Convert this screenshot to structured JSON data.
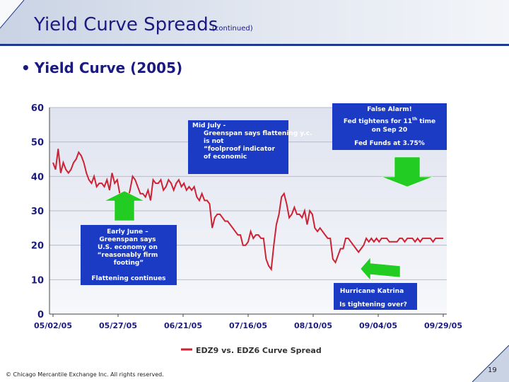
{
  "header": {
    "title": "Yield Curve Spreads",
    "subtitle": "(continued)"
  },
  "bullet": "Yield Curve (2005)",
  "chart_data": {
    "type": "line",
    "title": "Yield Curve (2005)",
    "ylim": [
      0,
      60
    ],
    "y_ticks": [
      "0",
      "10",
      "20",
      "30",
      "40",
      "50",
      "60"
    ],
    "x_ticks": [
      "05/02/05",
      "05/27/05",
      "06/21/05",
      "07/16/05",
      "08/10/05",
      "09/04/05",
      "09/29/05"
    ],
    "grid": true,
    "legend": "EDZ9 vs. EDZ6 Curve Spread",
    "series": [
      {
        "name": "EDZ9 vs. EDZ6 Curve Spread",
        "color": "#cc2233",
        "x_days": [
          0,
          1,
          2,
          3,
          4,
          5,
          6,
          7,
          8,
          9,
          10,
          11,
          12,
          13,
          14,
          15,
          16,
          17,
          18,
          19,
          20,
          21,
          22,
          23,
          24,
          25,
          26,
          27,
          28,
          29,
          30,
          31,
          32,
          33,
          34,
          35,
          36,
          37,
          38,
          39,
          40,
          41,
          42,
          43,
          44,
          45,
          46,
          47,
          48,
          49,
          50,
          51,
          52,
          53,
          54,
          55,
          56,
          57,
          58,
          59,
          60,
          61,
          62,
          63,
          64,
          65,
          66,
          67,
          68,
          69,
          70,
          71,
          72,
          73,
          74,
          75,
          76,
          77,
          78,
          79,
          80,
          81,
          82,
          83,
          84,
          85,
          86,
          87,
          88,
          89,
          90,
          91,
          92,
          93,
          94,
          95,
          96,
          97,
          98,
          99,
          100,
          101,
          102,
          103,
          104,
          105,
          106,
          107,
          108,
          109,
          110,
          111,
          112,
          113,
          114,
          115,
          116,
          117,
          118,
          119,
          120,
          121,
          122,
          123,
          124,
          125,
          126,
          127,
          128,
          129,
          130,
          131,
          132,
          133,
          134,
          135,
          136,
          137,
          138,
          139,
          140,
          141,
          142,
          143,
          144,
          145,
          146,
          147,
          148,
          149,
          150,
          151,
          152
        ],
        "values": [
          44,
          42,
          48,
          41,
          44,
          42,
          41,
          42,
          44,
          45,
          47,
          46,
          44,
          41,
          39,
          38,
          40,
          37,
          38,
          38,
          37,
          39,
          36,
          41,
          38,
          39,
          35,
          32,
          31,
          33,
          36,
          40,
          39,
          37,
          35,
          35,
          34,
          36,
          33,
          39,
          38,
          38,
          39,
          36,
          37,
          39,
          38,
          36,
          38,
          39,
          37,
          38,
          36,
          37,
          36,
          37,
          34,
          33,
          35,
          33,
          33,
          32,
          25,
          28,
          29,
          29,
          28,
          27,
          27,
          26,
          25,
          24,
          23,
          23,
          20,
          20,
          21,
          24,
          22,
          23,
          23,
          22,
          22,
          16,
          14,
          13,
          20,
          26,
          29,
          34,
          35,
          32,
          28,
          29,
          31,
          29,
          29,
          28,
          30,
          26,
          30,
          29,
          25,
          24,
          25,
          24,
          23,
          22,
          22,
          16,
          15,
          17,
          19,
          19,
          22,
          22,
          21,
          20,
          19,
          18,
          19,
          20,
          22,
          21,
          22,
          21,
          22,
          21,
          22,
          22,
          22,
          21,
          21,
          21,
          21,
          22,
          22,
          21,
          22,
          22,
          22,
          21,
          22,
          21,
          22,
          22,
          22,
          22,
          21,
          22,
          22,
          22,
          22
        ]
      }
    ],
    "annotations": {
      "mid_july": "Mid July - Greenspan says flattening y.c. is not “foolproof indicator of economic weakness”",
      "false_alarm_title": "False Alarm!",
      "false_alarm_l1_pre": "Fed tightens for 11",
      "false_alarm_l1_sup": "th",
      "false_alarm_l1_post": " time",
      "false_alarm_l2": "on Sep 20",
      "false_alarm_l3": "Fed Funds at 3.75%",
      "early_june": "Early June – Greenspan says U.S. economy on “reasonably firm footing”",
      "flattening": "Flattening continues",
      "hurricane": "Hurricane Katrina",
      "tightening": "Is tightening over?"
    }
  },
  "footer": {
    "copyright": "© Chicago Mercantile Exchange Inc. All rights reserved.",
    "page_number": "19"
  }
}
